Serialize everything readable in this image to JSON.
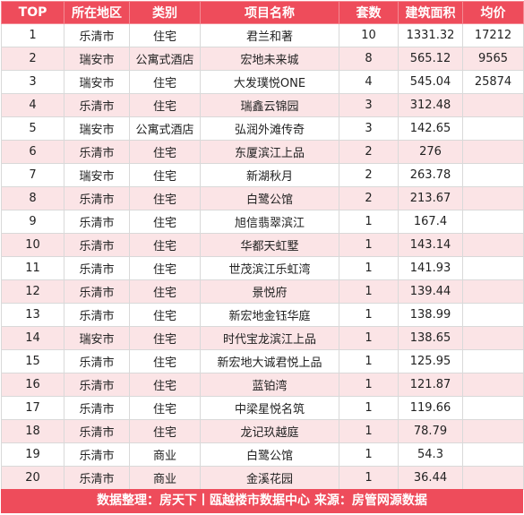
{
  "headers": [
    "TOP",
    "所在地区",
    "类别",
    "项目名称",
    "套数",
    "建筑面积",
    "均价"
  ],
  "rows": [
    {
      "rank": "1",
      "region": "乐清市",
      "category": "住宅",
      "project": "君兰和著",
      "units": "10",
      "area": "1331.32",
      "price": "17212"
    },
    {
      "rank": "2",
      "region": "瑞安市",
      "category": "公寓式酒店",
      "project": "宏地未来城",
      "units": "8",
      "area": "565.12",
      "price": "9565"
    },
    {
      "rank": "3",
      "region": "瑞安市",
      "category": "住宅",
      "project": "大发璞悦ONE",
      "units": "4",
      "area": "545.04",
      "price": "25874"
    },
    {
      "rank": "4",
      "region": "乐清市",
      "category": "住宅",
      "project": "瑞鑫云锦园",
      "units": "3",
      "area": "312.48",
      "price": ""
    },
    {
      "rank": "5",
      "region": "瑞安市",
      "category": "公寓式酒店",
      "project": "弘润外滩传奇",
      "units": "3",
      "area": "142.65",
      "price": ""
    },
    {
      "rank": "6",
      "region": "乐清市",
      "category": "住宅",
      "project": "东厦滨江上品",
      "units": "2",
      "area": "276",
      "price": ""
    },
    {
      "rank": "7",
      "region": "瑞安市",
      "category": "住宅",
      "project": "新湖秋月",
      "units": "2",
      "area": "263.78",
      "price": ""
    },
    {
      "rank": "8",
      "region": "乐清市",
      "category": "住宅",
      "project": "白鹭公馆",
      "units": "2",
      "area": "213.67",
      "price": ""
    },
    {
      "rank": "9",
      "region": "乐清市",
      "category": "住宅",
      "project": "旭信翡翠滨江",
      "units": "1",
      "area": "167.4",
      "price": ""
    },
    {
      "rank": "10",
      "region": "乐清市",
      "category": "住宅",
      "project": "华都天虹墅",
      "units": "1",
      "area": "143.14",
      "price": ""
    },
    {
      "rank": "11",
      "region": "乐清市",
      "category": "住宅",
      "project": "世茂滨江乐虹湾",
      "units": "1",
      "area": "141.93",
      "price": ""
    },
    {
      "rank": "12",
      "region": "乐清市",
      "category": "住宅",
      "project": "景悦府",
      "units": "1",
      "area": "139.44",
      "price": ""
    },
    {
      "rank": "13",
      "region": "乐清市",
      "category": "住宅",
      "project": "新宏地金钰华庭",
      "units": "1",
      "area": "138.99",
      "price": ""
    },
    {
      "rank": "14",
      "region": "瑞安市",
      "category": "住宅",
      "project": "时代宝龙滨江上品",
      "units": "1",
      "area": "138.65",
      "price": ""
    },
    {
      "rank": "15",
      "region": "乐清市",
      "category": "住宅",
      "project": "新宏地大诚君悦上品",
      "units": "1",
      "area": "125.95",
      "price": ""
    },
    {
      "rank": "16",
      "region": "乐清市",
      "category": "住宅",
      "project": "蓝铂湾",
      "units": "1",
      "area": "121.87",
      "price": ""
    },
    {
      "rank": "17",
      "region": "乐清市",
      "category": "住宅",
      "project": "中梁星悦名筑",
      "units": "1",
      "area": "119.66",
      "price": ""
    },
    {
      "rank": "18",
      "region": "乐清市",
      "category": "住宅",
      "project": "龙记玖越庭",
      "units": "1",
      "area": "78.79",
      "price": ""
    },
    {
      "rank": "19",
      "region": "乐清市",
      "category": "商业",
      "project": "白鹭公馆",
      "units": "1",
      "area": "54.3",
      "price": ""
    },
    {
      "rank": "20",
      "region": "乐清市",
      "category": "商业",
      "project": "金溪花园",
      "units": "1",
      "area": "36.44",
      "price": ""
    }
  ],
  "footer": "数据整理：房天下丨瓯越楼市数据中心   来源：房管网源数据",
  "colors": {
    "header_bg": "#ee4c5b",
    "stripe_bg": "#fbe4e6",
    "border": "#d9d9d9"
  }
}
